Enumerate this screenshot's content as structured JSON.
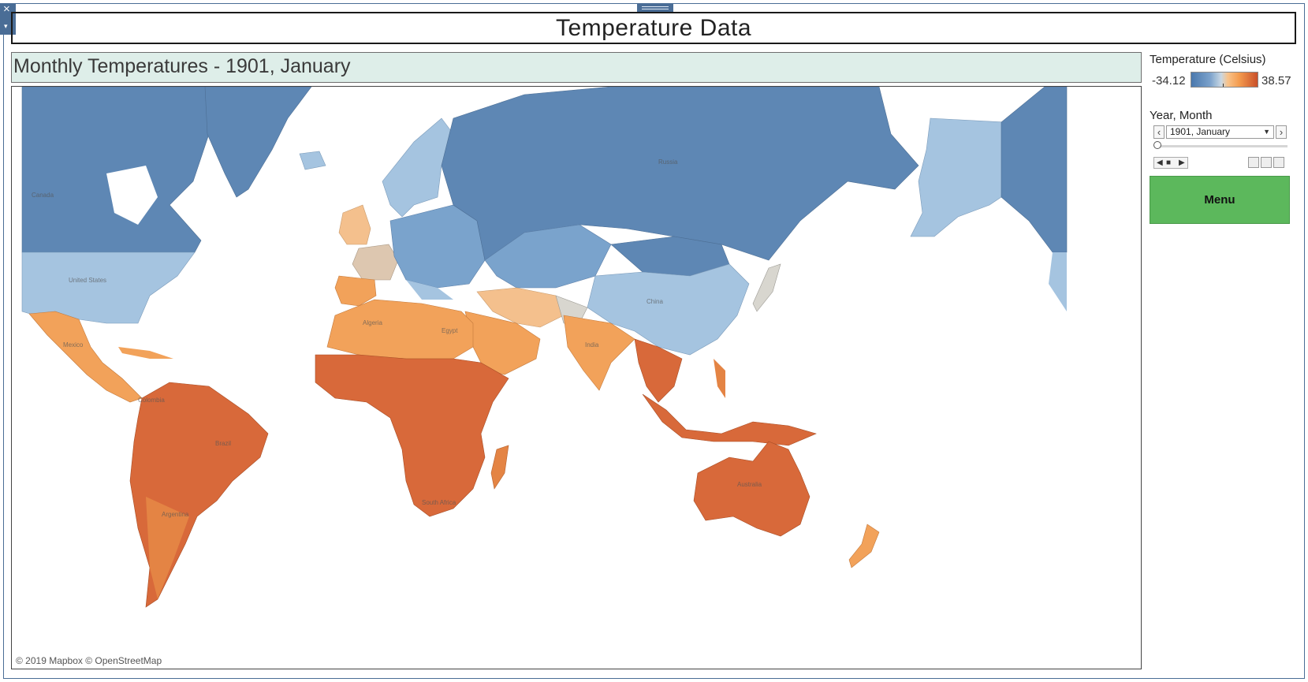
{
  "window": {
    "close_glyph": "×",
    "menu_caret_glyph": "▾"
  },
  "dashboard": {
    "title": "Temperature Data",
    "sheet_title": "Monthly Temperatures - 1901, January"
  },
  "map": {
    "attribution": "© 2019 Mapbox © OpenStreetMap",
    "country_labels": [
      "Canada",
      "United States",
      "Mexico",
      "Colombia",
      "Brazil",
      "Argentina",
      "Algeria",
      "Egypt",
      "South Africa",
      "Russia",
      "China",
      "India",
      "Australia"
    ],
    "colors": {
      "very_cold": "#5e87b4",
      "cold": "#7aa3cc",
      "cool": "#a5c4e0",
      "neutral": "#d8d6cf",
      "mild": "#f4c08d",
      "warm": "#f2a25a",
      "hot": "#e48444",
      "very_hot": "#d8693a"
    }
  },
  "legend": {
    "title": "Temperature (Celsius)",
    "min": "-34.12",
    "max": "38.57",
    "scale": [
      "#4a78ad",
      "#7aa1cb",
      "#c8d7e3",
      "#f8c38b",
      "#f49c4f",
      "#c9502a"
    ]
  },
  "filter": {
    "title": "Year, Month",
    "selected": "1901, January",
    "prev_glyph": "‹",
    "next_glyph": "›"
  },
  "menu": {
    "label": "Menu",
    "color": "#5cb85c"
  }
}
